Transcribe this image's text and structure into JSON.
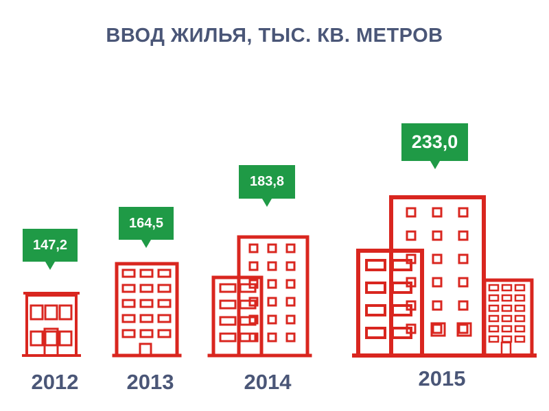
{
  "colors": {
    "title": "#4a5677",
    "building": "#d9261f",
    "badge": "#1f9a46",
    "year": "#4a5677"
  },
  "chart_data": {
    "type": "bar",
    "title": "ВВОД ЖИЛЬЯ, ТЫС. КВ. МЕТРОВ",
    "categories": [
      "2012",
      "2013",
      "2014",
      "2015"
    ],
    "values": [
      147.2,
      164.5,
      183.8,
      233.0
    ],
    "value_labels": [
      "147,2",
      "164,5",
      "183,8",
      "233,0"
    ]
  }
}
